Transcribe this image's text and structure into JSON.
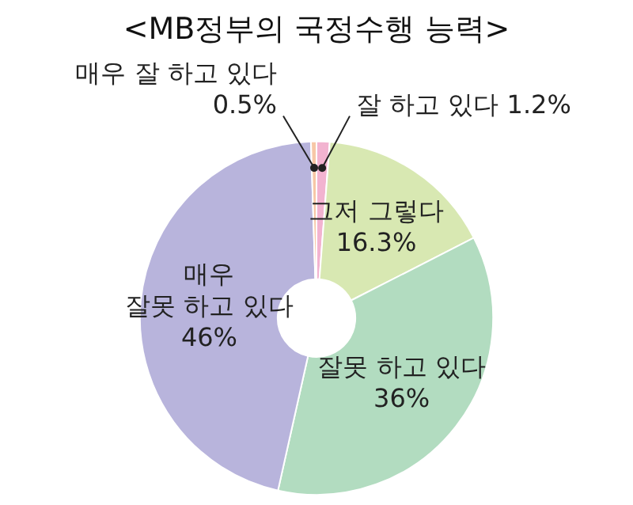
{
  "chart_data": {
    "type": "donut",
    "title": "<MB정부의 국정수행 능력>",
    "categories": [
      "잘 하고 있다",
      "그저 그렇다",
      "잘못 하고 있다",
      "매우 잘못 하고 있다",
      "매우 잘 하고 있다"
    ],
    "values": [
      1.2,
      16.3,
      36,
      46,
      0.5
    ],
    "value_labels": [
      "1.2%",
      "16.3%",
      "36%",
      "46%",
      "0.5%"
    ],
    "colors": [
      "#f2b3d0",
      "#d8e8b2",
      "#b2dcc0",
      "#b8b4dc",
      "#f7c7a6"
    ],
    "legend": false
  }
}
